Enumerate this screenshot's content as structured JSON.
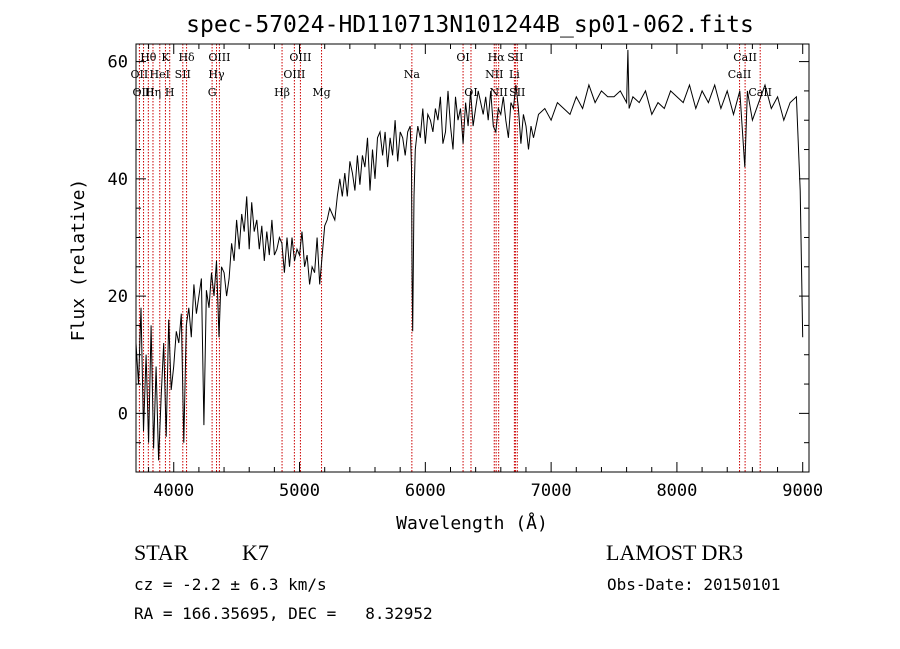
{
  "chart_data": {
    "type": "line",
    "title": "spec-57024-HD110713N101244B_sp01-062.fits",
    "xlabel": "Wavelength (Å)",
    "ylabel": "Flux (relative)",
    "xlim": [
      3700,
      9050
    ],
    "ylim": [
      -10,
      63
    ],
    "x_ticks": [
      4000,
      5000,
      6000,
      7000,
      8000,
      9000
    ],
    "x_tick_labels": [
      "4000",
      "5000",
      "6000",
      "7000",
      "8000",
      "9000"
    ],
    "y_ticks": [
      0,
      20,
      40,
      60
    ],
    "y_tick_labels": [
      "0",
      "20",
      "40",
      "60"
    ],
    "grid": false,
    "series": [
      {
        "name": "flux",
        "x": [
          3700,
          3720,
          3740,
          3760,
          3780,
          3800,
          3820,
          3840,
          3860,
          3880,
          3900,
          3920,
          3940,
          3960,
          3980,
          4000,
          4020,
          4040,
          4060,
          4080,
          4100,
          4120,
          4140,
          4160,
          4180,
          4200,
          4220,
          4240,
          4260,
          4280,
          4300,
          4320,
          4340,
          4360,
          4380,
          4400,
          4420,
          4440,
          4460,
          4480,
          4500,
          4520,
          4540,
          4560,
          4580,
          4600,
          4620,
          4640,
          4660,
          4680,
          4700,
          4720,
          4740,
          4760,
          4780,
          4800,
          4820,
          4840,
          4860,
          4880,
          4900,
          4920,
          4940,
          4960,
          4980,
          5000,
          5020,
          5040,
          5060,
          5080,
          5100,
          5120,
          5140,
          5160,
          5180,
          5200,
          5220,
          5240,
          5260,
          5280,
          5300,
          5320,
          5340,
          5360,
          5380,
          5400,
          5420,
          5440,
          5460,
          5480,
          5500,
          5520,
          5540,
          5560,
          5580,
          5600,
          5620,
          5640,
          5660,
          5680,
          5700,
          5720,
          5740,
          5760,
          5780,
          5800,
          5820,
          5840,
          5860,
          5880,
          5890,
          5895,
          5900,
          5910,
          5920,
          5940,
          5960,
          5980,
          6000,
          6020,
          6040,
          6060,
          6080,
          6100,
          6120,
          6140,
          6160,
          6180,
          6200,
          6220,
          6240,
          6260,
          6280,
          6300,
          6320,
          6340,
          6360,
          6380,
          6400,
          6420,
          6440,
          6460,
          6480,
          6500,
          6520,
          6540,
          6560,
          6580,
          6600,
          6620,
          6640,
          6660,
          6680,
          6700,
          6720,
          6740,
          6760,
          6780,
          6800,
          6820,
          6840,
          6860,
          6880,
          6900,
          6950,
          7000,
          7050,
          7100,
          7150,
          7200,
          7250,
          7300,
          7350,
          7400,
          7450,
          7500,
          7550,
          7600,
          7610,
          7620,
          7650,
          7700,
          7750,
          7800,
          7850,
          7900,
          7950,
          8000,
          8050,
          8100,
          8150,
          8200,
          8250,
          8300,
          8350,
          8400,
          8450,
          8500,
          8540,
          8560,
          8600,
          8650,
          8700,
          8750,
          8800,
          8850,
          8900,
          8950,
          8980,
          9000
        ],
        "values": [
          12,
          5,
          18,
          -3,
          10,
          -5,
          15,
          -6,
          8,
          -8,
          3,
          12,
          -4,
          16,
          4,
          8,
          14,
          12,
          17,
          -5,
          15,
          18,
          13,
          22,
          17,
          20,
          23,
          -2,
          21,
          18,
          24,
          20,
          26,
          13,
          25,
          24,
          20,
          23,
          29,
          26,
          33,
          28,
          34,
          31,
          37,
          28,
          36,
          31,
          33,
          28,
          32,
          26,
          31,
          27,
          33,
          27,
          28,
          30,
          29,
          24,
          30,
          25,
          30,
          26,
          28,
          27,
          31,
          25,
          27,
          22,
          25,
          24,
          30,
          22,
          27,
          32,
          33,
          35,
          34,
          33,
          37,
          40,
          37,
          41,
          37,
          43,
          41,
          38,
          44,
          39,
          44,
          42,
          47,
          38,
          45,
          40,
          47,
          48,
          44,
          48,
          42,
          47,
          44,
          50,
          43,
          48,
          47,
          44,
          48,
          49,
          42,
          23,
          14,
          37,
          45,
          49,
          47,
          52,
          46,
          51,
          50,
          48,
          52,
          50,
          54,
          46,
          48,
          55,
          49,
          45,
          54,
          50,
          52,
          46,
          53,
          49,
          55,
          49,
          52,
          55,
          53,
          51,
          54,
          50,
          55,
          49,
          48,
          52,
          51,
          54,
          50,
          47,
          53,
          52,
          56,
          52,
          46,
          51,
          49,
          45,
          49,
          47,
          49,
          51,
          52,
          50,
          53,
          52,
          51,
          54,
          52,
          56,
          53,
          55,
          54,
          54,
          55,
          53,
          62,
          52,
          54,
          53,
          55,
          51,
          53,
          52,
          55,
          54,
          53,
          56,
          52,
          55,
          53,
          56,
          52,
          55,
          51,
          55,
          42,
          55,
          50,
          53,
          56,
          52,
          54,
          50,
          53,
          54,
          38,
          13
        ]
      }
    ],
    "line_labels": [
      {
        "label": "Hθ",
        "x": 3798,
        "row": 1
      },
      {
        "label": "OII",
        "x": 3727,
        "row": 2
      },
      {
        "label": "OIII",
        "x": 3760,
        "row": 3
      },
      {
        "label": "K",
        "x": 3934,
        "row": 1
      },
      {
        "label": "HeI",
        "x": 3889,
        "row": 2
      },
      {
        "label": "Hη",
        "x": 3835,
        "row": 3
      },
      {
        "label": "Hδ",
        "x": 4102,
        "row": 1
      },
      {
        "label": "SII",
        "x": 4072,
        "row": 2
      },
      {
        "label": "H",
        "x": 3968,
        "row": 3
      },
      {
        "label": "OIII",
        "x": 4363,
        "row": 1
      },
      {
        "label": "Hγ",
        "x": 4340,
        "row": 2
      },
      {
        "label": "G",
        "x": 4305,
        "row": 3
      },
      {
        "label": "OIII",
        "x": 5007,
        "row": 1
      },
      {
        "label": "OIII",
        "x": 4959,
        "row": 2
      },
      {
        "label": "Hβ",
        "x": 4861,
        "row": 3
      },
      {
        "label": "Mg",
        "x": 5175,
        "row": 3
      },
      {
        "label": "Na",
        "x": 5893,
        "row": 2
      },
      {
        "label": "OI",
        "x": 6300,
        "row": 1
      },
      {
        "label": "OI",
        "x": 6363,
        "row": 3
      },
      {
        "label": "Hα",
        "x": 6563,
        "row": 1
      },
      {
        "label": "SII",
        "x": 6716,
        "row": 1
      },
      {
        "label": "NII",
        "x": 6548,
        "row": 2
      },
      {
        "label": "Li",
        "x": 6708,
        "row": 2
      },
      {
        "label": "NII",
        "x": 6583,
        "row": 3
      },
      {
        "label": "SII",
        "x": 6731,
        "row": 3
      },
      {
        "label": "CaII",
        "x": 8542,
        "row": 1
      },
      {
        "label": "CaII",
        "x": 8498,
        "row": 2
      },
      {
        "label": "CaII",
        "x": 8662,
        "row": 3
      }
    ],
    "colors": {
      "spectrum": "#000000",
      "lines": "#cc0000",
      "axes": "#000000"
    }
  },
  "info": {
    "object_type": "STAR",
    "subclass": "K7",
    "redshift": "cz = -2.2 ± 6.3 km/s",
    "coords": "RA = 166.35695, DEC =   8.32952",
    "survey": "LAMOST DR3",
    "obs_date": "Obs-Date: 20150101"
  }
}
